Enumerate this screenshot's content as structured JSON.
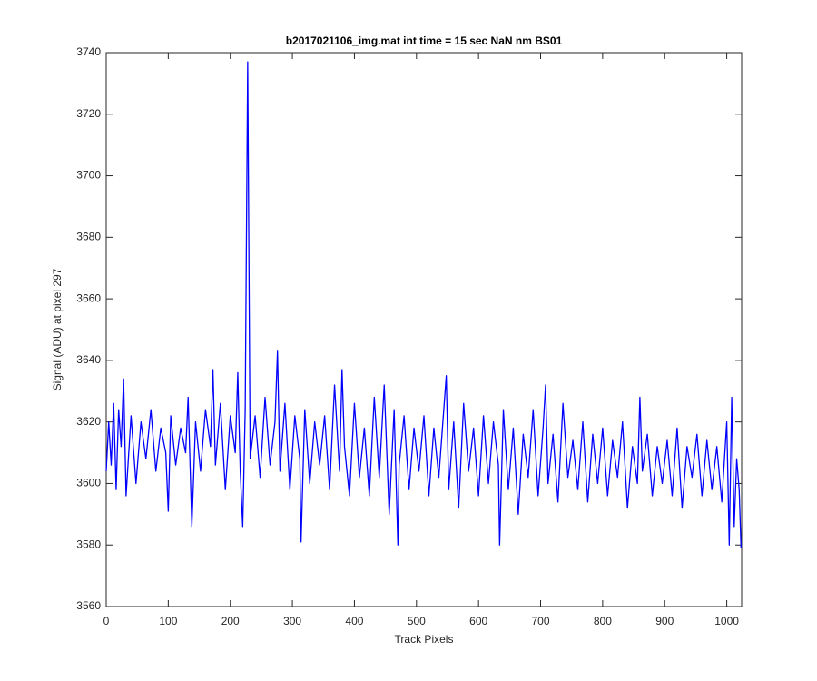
{
  "chart_data": {
    "type": "line",
    "title": "b2017021106_img.mat int time = 15 sec  NaN nm BS01",
    "xlabel": "Track Pixels",
    "ylabel": "Signal (ADU) at pixel 297",
    "color": "#0000ff",
    "xlim": [
      0,
      1024
    ],
    "ylim": [
      3560,
      3740
    ],
    "xticks": [
      0,
      100,
      200,
      300,
      400,
      500,
      600,
      700,
      800,
      900,
      1000
    ],
    "yticks": [
      3560,
      3580,
      3600,
      3620,
      3640,
      3660,
      3680,
      3700,
      3720,
      3740
    ],
    "grid": false,
    "x": [
      0,
      4,
      8,
      12,
      16,
      20,
      24,
      28,
      32,
      40,
      48,
      56,
      64,
      72,
      80,
      88,
      96,
      100,
      104,
      112,
      120,
      128,
      132,
      138,
      144,
      152,
      160,
      168,
      172,
      176,
      184,
      192,
      200,
      208,
      212,
      216,
      220,
      224,
      228,
      232,
      240,
      248,
      256,
      264,
      272,
      276,
      280,
      288,
      296,
      304,
      312,
      314,
      320,
      328,
      336,
      344,
      352,
      360,
      368,
      376,
      380,
      384,
      392,
      400,
      408,
      416,
      424,
      432,
      440,
      448,
      456,
      464,
      470,
      472,
      480,
      488,
      496,
      504,
      512,
      520,
      528,
      536,
      544,
      548,
      552,
      560,
      568,
      576,
      584,
      592,
      600,
      608,
      616,
      624,
      632,
      634,
      640,
      648,
      656,
      664,
      672,
      680,
      688,
      696,
      704,
      708,
      712,
      720,
      728,
      736,
      744,
      752,
      760,
      768,
      776,
      784,
      792,
      800,
      808,
      816,
      824,
      832,
      840,
      848,
      856,
      860,
      864,
      872,
      880,
      888,
      896,
      904,
      912,
      920,
      928,
      936,
      944,
      952,
      960,
      968,
      976,
      984,
      992,
      1000,
      1004,
      1008,
      1012,
      1016,
      1020,
      1023
    ],
    "values": [
      3604,
      3620,
      3606,
      3626,
      3598,
      3624,
      3612,
      3634,
      3596,
      3622,
      3600,
      3620,
      3608,
      3624,
      3604,
      3618,
      3610,
      3591,
      3622,
      3606,
      3618,
      3610,
      3628,
      3586,
      3620,
      3604,
      3624,
      3612,
      3637,
      3606,
      3626,
      3598,
      3622,
      3610,
      3636,
      3604,
      3586,
      3624,
      3737,
      3608,
      3622,
      3602,
      3628,
      3606,
      3620,
      3643,
      3604,
      3626,
      3598,
      3622,
      3608,
      3581,
      3624,
      3600,
      3620,
      3606,
      3622,
      3598,
      3632,
      3604,
      3637,
      3612,
      3596,
      3626,
      3602,
      3618,
      3596,
      3628,
      3602,
      3632,
      3590,
      3624,
      3580,
      3606,
      3622,
      3598,
      3618,
      3604,
      3622,
      3596,
      3618,
      3602,
      3624,
      3635,
      3598,
      3620,
      3592,
      3626,
      3604,
      3618,
      3596,
      3622,
      3600,
      3620,
      3606,
      3580,
      3624,
      3598,
      3618,
      3590,
      3616,
      3602,
      3624,
      3596,
      3618,
      3632,
      3600,
      3616,
      3594,
      3626,
      3602,
      3614,
      3598,
      3620,
      3594,
      3616,
      3600,
      3618,
      3596,
      3614,
      3602,
      3620,
      3592,
      3612,
      3600,
      3628,
      3604,
      3616,
      3596,
      3612,
      3600,
      3614,
      3596,
      3618,
      3592,
      3612,
      3602,
      3616,
      3596,
      3614,
      3598,
      3612,
      3594,
      3620,
      3580,
      3628,
      3586,
      3608,
      3598,
      3579
    ]
  }
}
